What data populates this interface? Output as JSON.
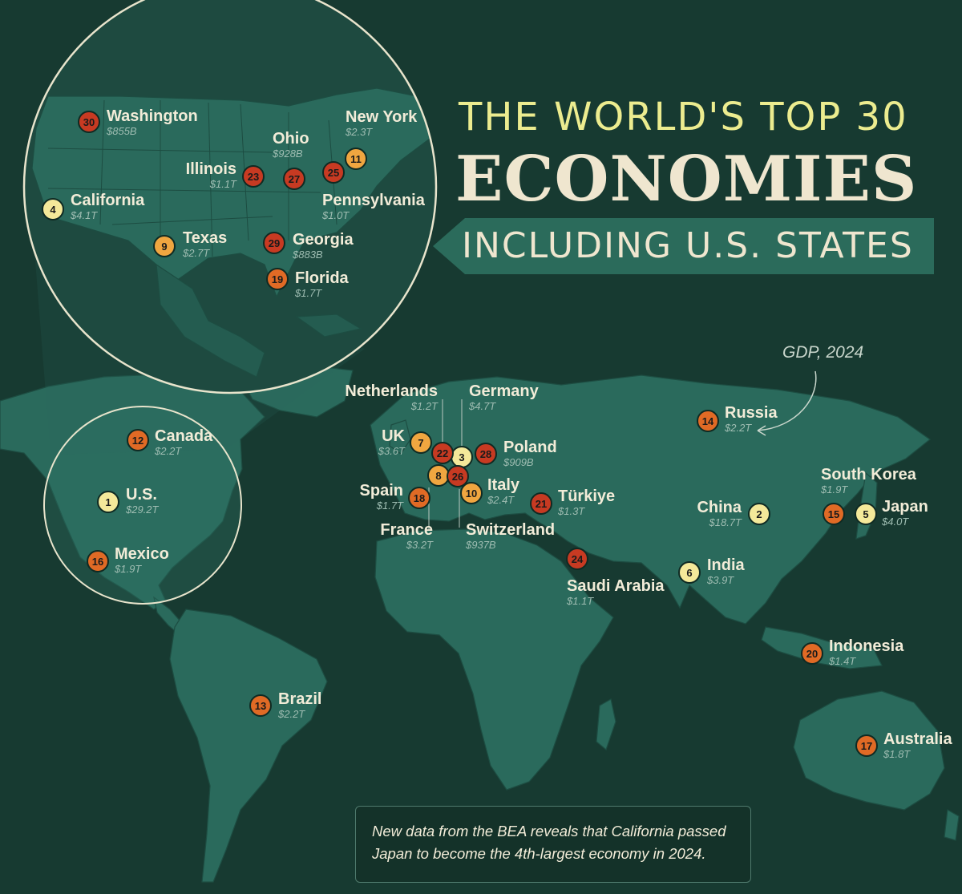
{
  "title": {
    "line1": "THE WORLD'S TOP 30",
    "line2": "ECONOMIES",
    "line3": "INCLUDING U.S. STATES"
  },
  "gdp_note": "GDP, 2024",
  "footnote": "New data from the BEA reveals that California passed Japan to become the 4th-largest economy in 2024.",
  "colors": {
    "background": "#173a31",
    "land": "#2a6a5c",
    "rank_1_6": "#f4e99a",
    "rank_7_11": "#f0a640",
    "rank_12_20": "#e06a25",
    "rank_21_30": "#c73a22",
    "title_accent": "#ecec8f"
  },
  "economies": [
    {
      "rank": "1",
      "name": "U.S.",
      "value": "$29.2T"
    },
    {
      "rank": "2",
      "name": "China",
      "value": "$18.7T"
    },
    {
      "rank": "3",
      "name": "Germany",
      "value": "$4.7T"
    },
    {
      "rank": "4",
      "name": "California",
      "value": "$4.1T"
    },
    {
      "rank": "5",
      "name": "Japan",
      "value": "$4.0T"
    },
    {
      "rank": "6",
      "name": "India",
      "value": "$3.9T"
    },
    {
      "rank": "7",
      "name": "UK",
      "value": "$3.6T"
    },
    {
      "rank": "8",
      "name": "France",
      "value": "$3.2T"
    },
    {
      "rank": "9",
      "name": "Texas",
      "value": "$2.7T"
    },
    {
      "rank": "10",
      "name": "Italy",
      "value": "$2.4T"
    },
    {
      "rank": "11",
      "name": "New York",
      "value": "$2.3T"
    },
    {
      "rank": "12",
      "name": "Canada",
      "value": "$2.2T"
    },
    {
      "rank": "13",
      "name": "Brazil",
      "value": "$2.2T"
    },
    {
      "rank": "14",
      "name": "Russia",
      "value": "$2.2T"
    },
    {
      "rank": "15",
      "name": "South Korea",
      "value": "$1.9T"
    },
    {
      "rank": "16",
      "name": "Mexico",
      "value": "$1.9T"
    },
    {
      "rank": "17",
      "name": "Australia",
      "value": "$1.8T"
    },
    {
      "rank": "18",
      "name": "Spain",
      "value": "$1.7T"
    },
    {
      "rank": "19",
      "name": "Florida",
      "value": "$1.7T"
    },
    {
      "rank": "20",
      "name": "Indonesia",
      "value": "$1.4T"
    },
    {
      "rank": "21",
      "name": "Türkiye",
      "value": "$1.3T"
    },
    {
      "rank": "22",
      "name": "Netherlands",
      "value": "$1.2T"
    },
    {
      "rank": "23",
      "name": "Illinois",
      "value": "$1.1T"
    },
    {
      "rank": "24",
      "name": "Saudi Arabia",
      "value": "$1.1T"
    },
    {
      "rank": "25",
      "name": "Pennsylvania",
      "value": "$1.0T"
    },
    {
      "rank": "26",
      "name": "Switzerland",
      "value": "$937B"
    },
    {
      "rank": "27",
      "name": "Ohio",
      "value": "$928B"
    },
    {
      "rank": "28",
      "name": "Poland",
      "value": "$909B"
    },
    {
      "rank": "29",
      "name": "Georgia",
      "value": "$883B"
    },
    {
      "rank": "30",
      "name": "Washington",
      "value": "$855B"
    }
  ]
}
